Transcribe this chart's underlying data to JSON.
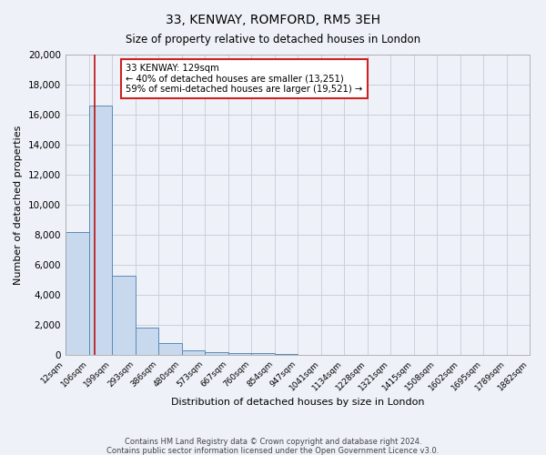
{
  "title": "33, KENWAY, ROMFORD, RM5 3EH",
  "subtitle": "Size of property relative to detached houses in London",
  "xlabel": "Distribution of detached houses by size in London",
  "ylabel": "Number of detached properties",
  "footnote1": "Contains HM Land Registry data © Crown copyright and database right 2024.",
  "footnote2": "Contains public sector information licensed under the Open Government Licence v3.0.",
  "bar_edges": [
    12,
    106,
    199,
    293,
    386,
    480,
    573,
    667,
    760,
    854,
    947,
    1041,
    1134,
    1228,
    1321,
    1415,
    1508,
    1602,
    1695,
    1789,
    1882
  ],
  "bar_heights": [
    8200,
    16600,
    5300,
    1800,
    800,
    300,
    200,
    150,
    100,
    80,
    0,
    0,
    0,
    0,
    0,
    0,
    0,
    0,
    0,
    0
  ],
  "bar_color": "#c9d9ed",
  "bar_edge_color": "#5a8ab8",
  "bar_linewidth": 0.7,
  "grid_color": "#c8d0dc",
  "bg_color": "#eef2f8",
  "vline_x": 129,
  "vline_color": "#bb1111",
  "vline_linewidth": 1.2,
  "annotation_title": "33 KENWAY: 129sqm",
  "annotation_line1": "← 40% of detached houses are smaller (13,251)",
  "annotation_line2": "59% of semi-detached houses are larger (19,521) →",
  "ylim": [
    0,
    20000
  ],
  "xlim": [
    12,
    1882
  ],
  "tick_labels": [
    "12sqm",
    "106sqm",
    "199sqm",
    "293sqm",
    "386sqm",
    "480sqm",
    "573sqm",
    "667sqm",
    "760sqm",
    "854sqm",
    "947sqm",
    "1041sqm",
    "1134sqm",
    "1228sqm",
    "1321sqm",
    "1415sqm",
    "1508sqm",
    "1602sqm",
    "1695sqm",
    "1789sqm",
    "1882sqm"
  ],
  "tick_positions": [
    12,
    106,
    199,
    293,
    386,
    480,
    573,
    667,
    760,
    854,
    947,
    1041,
    1134,
    1228,
    1321,
    1415,
    1508,
    1602,
    1695,
    1789,
    1882
  ],
  "figsize": [
    6.0,
    5.0
  ],
  "dpi": 100
}
